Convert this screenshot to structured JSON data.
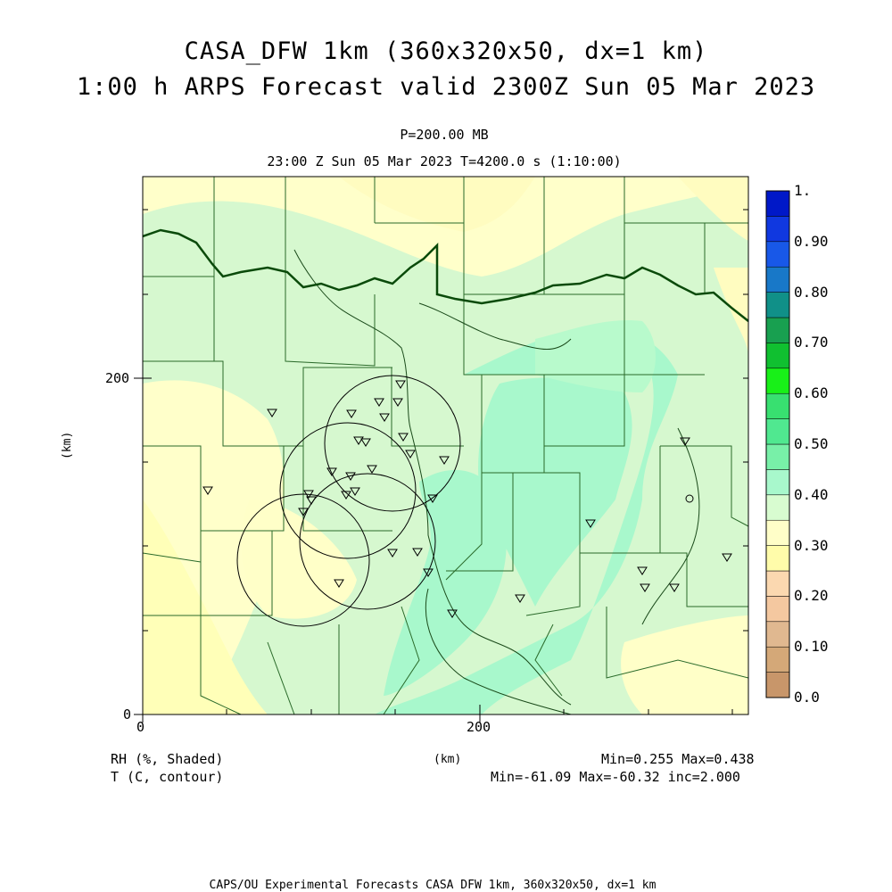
{
  "title_line1": "CASA_DFW 1km (360x320x50, dx=1 km)",
  "title_line2": "1:00 h ARPS Forecast valid 2300Z Sun 05 Mar 2023",
  "level_label": "P=200.00 MB",
  "time_label": "23:00 Z Sun 05 Mar 2023   T=4200.0 s (1:10:00)",
  "axes": {
    "x_ticks": [
      "0",
      "200"
    ],
    "y_ticks": [
      "0",
      "200"
    ],
    "x_unit": "(km)",
    "y_unit": "(km)"
  },
  "legend": {
    "shaded_field": "RH (%, Shaded)",
    "contour_field": "T (C, contour)",
    "shaded_stats": "Min=0.255 Max=0.438",
    "contour_stats": "Min=-61.09 Max=-60.32 inc=2.000"
  },
  "colorbar": {
    "labels": [
      "0.0",
      "0.10",
      "0.20",
      "0.30",
      "0.40",
      "0.50",
      "0.60",
      "0.70",
      "0.80",
      "0.90",
      "1."
    ],
    "colors": [
      "#c8966a",
      "#d4a878",
      "#e0b890",
      "#f4c8a0",
      "#fbd8b0",
      "#fffcaa",
      "#fffec8",
      "#d8fcd0",
      "#a8f8cc",
      "#78f0a8",
      "#50e890",
      "#38e070",
      "#18f018",
      "#10c030",
      "#18a050",
      "#109088",
      "#1878c8",
      "#1858e8",
      "#1038e0",
      "#0018c8"
    ]
  },
  "footer": "CAPS/OU Experimental Forecasts  CASA DFW 1km, 360x320x50, dx=1 km"
}
